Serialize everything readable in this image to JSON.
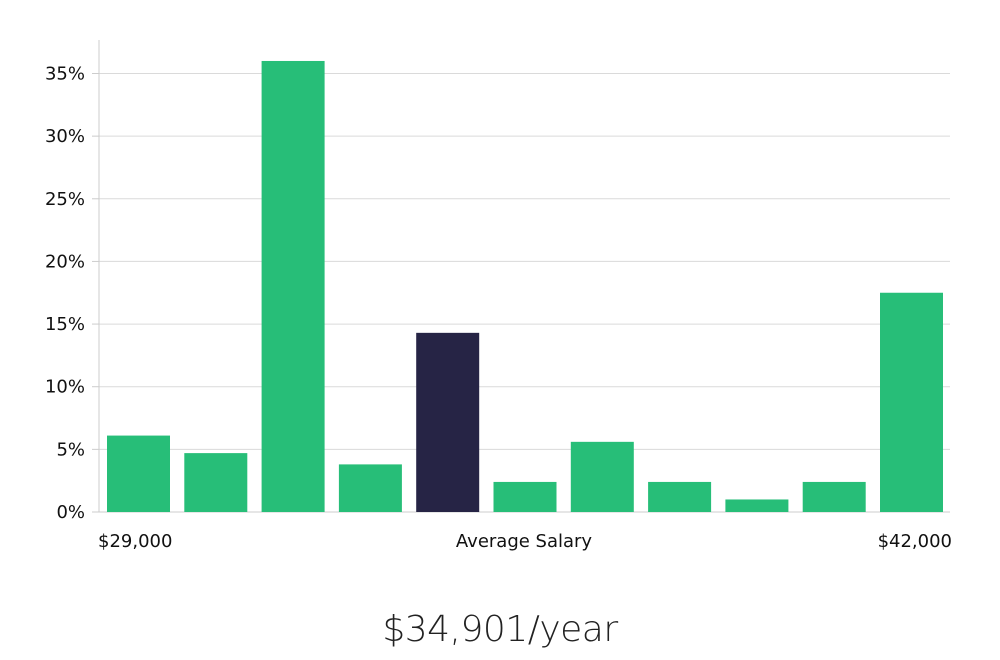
{
  "chart_data": {
    "type": "bar",
    "categories": [
      "1",
      "2",
      "3",
      "4",
      "5",
      "6",
      "7",
      "8",
      "9",
      "10",
      "11"
    ],
    "values": [
      6.1,
      4.7,
      36.0,
      3.8,
      14.3,
      2.4,
      5.6,
      2.4,
      1.0,
      2.4,
      17.5
    ],
    "highlight_index": 4,
    "ylim": [
      0,
      37.5
    ],
    "yticks": [
      0,
      5,
      10,
      15,
      20,
      25,
      30,
      35
    ],
    "ytick_labels": [
      "0%",
      "5%",
      "10%",
      "15%",
      "20%",
      "25%",
      "30%",
      "35%"
    ],
    "x_labels": {
      "min": "$29,000",
      "center": "Average Salary",
      "max": "$42,000"
    },
    "grid": true,
    "legend": "none",
    "colors": {
      "bar": "#27BE78",
      "highlight": "#262445",
      "grid": "#DADADA",
      "axis": "#CCCCCC",
      "text": "#111111"
    }
  },
  "summary": {
    "salary": "$34,901/year"
  }
}
